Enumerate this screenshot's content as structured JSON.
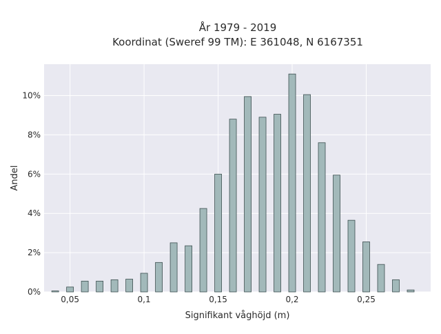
{
  "chart_data": {
    "type": "bar",
    "title": "År 1979 - 2019",
    "subtitle": "Koordinat (Sweref 99 TM): E 361048, N 6167351",
    "xlabel": "Signifikant våghöjd (m)",
    "ylabel": "Andel",
    "x": [
      0.04,
      0.05,
      0.06,
      0.07,
      0.08,
      0.09,
      0.1,
      0.11,
      0.12,
      0.13,
      0.14,
      0.15,
      0.16,
      0.17,
      0.18,
      0.19,
      0.2,
      0.21,
      0.22,
      0.23,
      0.24,
      0.25,
      0.26,
      0.27,
      0.28
    ],
    "values": [
      0.05,
      0.25,
      0.55,
      0.55,
      0.62,
      0.65,
      0.95,
      1.5,
      2.5,
      2.35,
      4.25,
      6.0,
      8.8,
      9.95,
      8.9,
      9.05,
      11.1,
      10.05,
      7.6,
      5.95,
      3.65,
      2.55,
      1.4,
      0.62,
      0.1
    ],
    "xlim": [
      0.0325,
      0.2935
    ],
    "ylim": [
      0,
      11.6
    ],
    "xticks": [
      0.05,
      0.1,
      0.15,
      0.2,
      0.25
    ],
    "xtick_labels": [
      "0,05",
      "0,1",
      "0,15",
      "0,2",
      "0,25"
    ],
    "yticks": [
      0,
      2,
      4,
      6,
      8,
      10
    ],
    "ytick_labels": [
      "0%",
      "2%",
      "4%",
      "6%",
      "8%",
      "10%"
    ],
    "grid": true,
    "colors": {
      "bar_fill": "#a2b9ba",
      "bar_edge": "#3d4f50",
      "plot_bg": "#e9e9f1",
      "grid": "#ffffff"
    }
  }
}
